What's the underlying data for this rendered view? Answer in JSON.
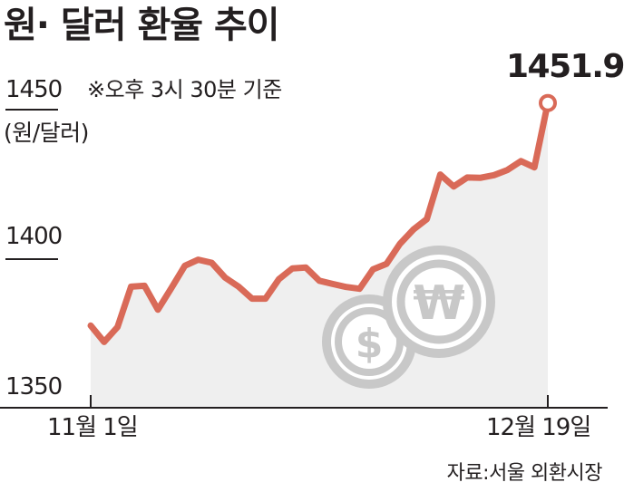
{
  "title": "원· 달러 환율 추이",
  "note": "※오후 3시 30분 기준",
  "unit": "(원/달러)",
  "source": "자료:서울 외환시장",
  "colors": {
    "line": "#d96a58",
    "area": "#efefef",
    "icon": "#c8c8c8",
    "text": "#231f20"
  },
  "icons": [
    "dollar-coin-icon",
    "won-coin-icon"
  ],
  "chart_data": {
    "type": "area",
    "title": "원· 달러 환율 추이",
    "ylabel": "(원/달러)",
    "xlabel": "",
    "ylim": [
      1350,
      1450
    ],
    "yticks": [
      "1350",
      "1400",
      "1450"
    ],
    "x_axis_labels": [
      "11월 1일",
      "12월 19일"
    ],
    "last_label": "1451.9",
    "series": [
      {
        "values": [
          1377.5,
          1372.0,
          1377.0,
          1390.5,
          1390.8,
          1382.8,
          1390.0,
          1397.5,
          1399.5,
          1398.5,
          1393.5,
          1390.5,
          1386.5,
          1386.5,
          1393.0,
          1396.6,
          1396.9,
          1392.5,
          1391.4,
          1390.4,
          1389.8,
          1396.3,
          1398.1,
          1404.8,
          1409.6,
          1413.1,
          1428.0,
          1424.0,
          1427.0,
          1426.9,
          1427.8,
          1429.5,
          1432.5,
          1430.4,
          1451.9
        ]
      }
    ]
  }
}
